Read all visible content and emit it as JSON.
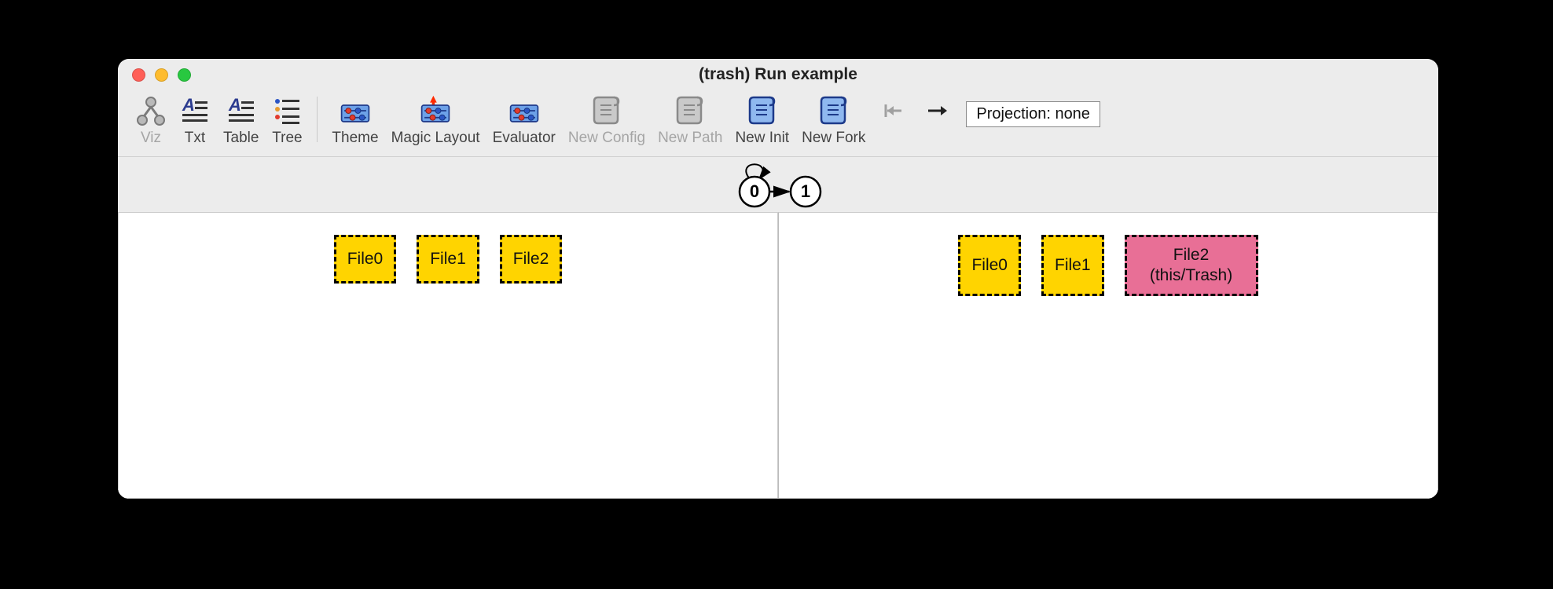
{
  "window": {
    "title": "(trash) Run example",
    "traffic_colors": {
      "close": "#ff5f57",
      "min": "#febc2e",
      "max": "#28c840"
    },
    "chrome_bg": "#ececec"
  },
  "toolbar": {
    "groups": [
      {
        "items": [
          {
            "id": "viz",
            "label": "Viz",
            "enabled": false,
            "icon": "viz"
          },
          {
            "id": "txt",
            "label": "Txt",
            "enabled": true,
            "icon": "text-lines"
          },
          {
            "id": "table",
            "label": "Table",
            "enabled": true,
            "icon": "text-lines"
          },
          {
            "id": "tree",
            "label": "Tree",
            "enabled": true,
            "icon": "tree-lines"
          }
        ]
      },
      {
        "items": [
          {
            "id": "theme",
            "label": "Theme",
            "enabled": true,
            "icon": "sliders"
          },
          {
            "id": "magic-layout",
            "label": "Magic Layout",
            "enabled": true,
            "icon": "sliders-arrow"
          },
          {
            "id": "evaluator",
            "label": "Evaluator",
            "enabled": true,
            "icon": "sliders"
          },
          {
            "id": "new-config",
            "label": "New Config",
            "enabled": false,
            "icon": "scroll-gray"
          },
          {
            "id": "new-path",
            "label": "New Path",
            "enabled": false,
            "icon": "scroll-gray"
          },
          {
            "id": "new-init",
            "label": "New Init",
            "enabled": true,
            "icon": "scroll-blue"
          },
          {
            "id": "new-fork",
            "label": "New Fork",
            "enabled": true,
            "icon": "scroll-blue"
          },
          {
            "id": "nav-first",
            "label": "",
            "enabled": false,
            "icon": "arrow-first"
          },
          {
            "id": "nav-next",
            "label": "",
            "enabled": true,
            "icon": "arrow-right"
          }
        ]
      }
    ],
    "icon_colors": {
      "blue": "#2b3b8f",
      "text_blue": "#2b3b8f",
      "panel_fill": "#6da1e8",
      "panel_stroke": "#1e3a8a",
      "dot_red": "#e23b2e",
      "dot_blue": "#2b55c4",
      "scroll_blue_fill": "#8fb8ef",
      "scroll_blue_stroke": "#1d3a8a",
      "scroll_gray_fill": "#c9c9c9",
      "scroll_gray_stroke": "#8a8a8a",
      "arrow_gray": "#a0a0a0",
      "arrow_black": "#222",
      "magic_arrow": "#ff2a00"
    }
  },
  "projection_label": "Projection: none",
  "state_graph": {
    "nodes": [
      {
        "id": 0,
        "label": "0"
      },
      {
        "id": 1,
        "label": "1"
      }
    ],
    "edges": [
      {
        "from": 0,
        "to": 1
      }
    ],
    "self_loop_on": 0
  },
  "panels": [
    {
      "nodes": [
        {
          "label": "File0",
          "fill": "#ffd400",
          "dash": "#000000",
          "wide": false
        },
        {
          "label": "File1",
          "fill": "#ffd400",
          "dash": "#000000",
          "wide": false
        },
        {
          "label": "File2",
          "fill": "#ffd400",
          "dash": "#000000",
          "wide": false
        }
      ]
    },
    {
      "nodes": [
        {
          "label": "File0",
          "fill": "#ffd400",
          "dash": "#000000",
          "wide": false
        },
        {
          "label": "File1",
          "fill": "#ffd400",
          "dash": "#000000",
          "wide": false
        },
        {
          "label": "File2\n(this/Trash)",
          "fill": "#e86f96",
          "dash": "#000000",
          "wide": true
        }
      ]
    }
  ],
  "colors": {
    "panel_bg": "#ffffff",
    "panel_border": "#cccccc",
    "node_yellow": "#ffd400",
    "node_pink": "#e86f96",
    "dash_color": "#000000"
  }
}
